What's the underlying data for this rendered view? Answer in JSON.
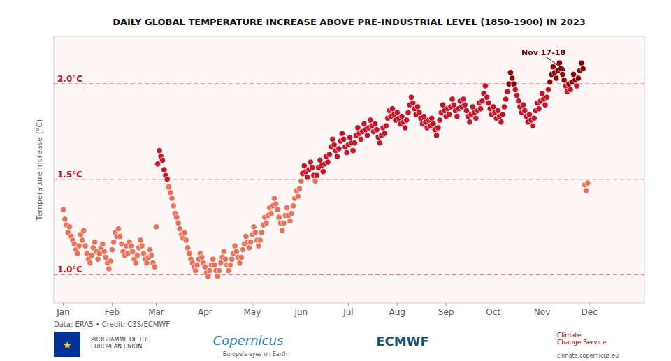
{
  "chart_data": {
    "type": "scatter",
    "title": "DAILY GLOBAL TEMPERATURE INCREASE ABOVE PRE-INDUSTRIAL LEVEL (1850-1900) IN 2023",
    "y_label": "Temperature increase (°C)",
    "source": "Data: ERA5 • Credit: C3S/ECMWF",
    "tick_labels": "x",
    "grid": false,
    "xlim": [
      -5,
      370
    ],
    "ylim": [
      0.85,
      2.25
    ],
    "xticks": [
      {
        "value": 1,
        "label": "Jan"
      },
      {
        "value": 32,
        "label": "Feb"
      },
      {
        "value": 60,
        "label": "Mar"
      },
      {
        "value": 91,
        "label": "Apr"
      },
      {
        "value": 121,
        "label": "May"
      },
      {
        "value": 152,
        "label": "Jun"
      },
      {
        "value": 182,
        "label": "Jul"
      },
      {
        "value": 213,
        "label": "Aug"
      },
      {
        "value": 244,
        "label": "Sep"
      },
      {
        "value": 274,
        "label": "Oct"
      },
      {
        "value": 305,
        "label": "Nov"
      },
      {
        "value": 335,
        "label": "Dec"
      }
    ],
    "hlines": [
      {
        "value": 1.0,
        "label": "1.0°C",
        "color": "#C0182A"
      },
      {
        "value": 1.5,
        "label": "1.5°C",
        "color": "#C0182A"
      },
      {
        "value": 2.0,
        "label": "2.0°C",
        "color": "#C0182A"
      }
    ],
    "annotation": {
      "text": "Nov 17-18",
      "x": 321,
      "y": 2.06,
      "color": "#5C0011"
    },
    "footer": [
      {
        "text": "★",
        "color": "gold"
      },
      {
        "text": "PROGRAMME OF THE\nEUROPEAN UNION",
        "color": "#333333"
      },
      {
        "text": "Copernicus",
        "color": "#2A7DB5"
      },
      {
        "text": "Europe's eyes on Earth",
        "color": "#555555"
      },
      {
        "text": "ECMWF",
        "color": "#1A5276"
      },
      {
        "text": "Climate\nChange Service",
        "color": "#8B0000"
      },
      {
        "text": "climate.copernicus.eu",
        "color": "#555555"
      }
    ],
    "x": [
      1,
      2,
      3,
      4,
      5,
      6,
      7,
      8,
      9,
      10,
      11,
      12,
      13,
      14,
      15,
      16,
      17,
      18,
      19,
      20,
      21,
      22,
      23,
      24,
      25,
      26,
      27,
      28,
      29,
      30,
      31,
      32,
      33,
      34,
      35,
      36,
      37,
      38,
      39,
      40,
      41,
      42,
      43,
      44,
      45,
      46,
      47,
      48,
      49,
      50,
      51,
      52,
      53,
      54,
      55,
      56,
      57,
      58,
      59,
      60,
      61,
      62,
      63,
      64,
      65,
      66,
      67,
      68,
      69,
      70,
      71,
      72,
      73,
      74,
      75,
      76,
      77,
      78,
      79,
      80,
      81,
      82,
      83,
      84,
      85,
      86,
      87,
      88,
      89,
      90,
      91,
      92,
      93,
      94,
      95,
      96,
      97,
      98,
      99,
      100,
      101,
      102,
      103,
      104,
      105,
      106,
      107,
      108,
      109,
      110,
      111,
      112,
      113,
      114,
      115,
      116,
      117,
      118,
      119,
      120,
      121,
      122,
      123,
      124,
      125,
      126,
      127,
      128,
      129,
      130,
      131,
      132,
      133,
      134,
      135,
      136,
      137,
      138,
      139,
      140,
      141,
      142,
      143,
      144,
      145,
      146,
      147,
      148,
      149,
      150,
      151,
      152,
      153,
      154,
      155,
      156,
      157,
      158,
      159,
      160,
      161,
      162,
      163,
      164,
      165,
      166,
      167,
      168,
      169,
      170,
      171,
      172,
      173,
      174,
      175,
      176,
      177,
      178,
      179,
      180,
      181,
      182,
      183,
      184,
      185,
      186,
      187,
      188,
      189,
      190,
      191,
      192,
      193,
      194,
      195,
      196,
      197,
      198,
      199,
      200,
      201,
      202,
      203,
      204,
      205,
      206,
      207,
      208,
      209,
      210,
      211,
      212,
      213,
      214,
      215,
      216,
      217,
      218,
      219,
      220,
      221,
      222,
      223,
      224,
      225,
      226,
      227,
      228,
      229,
      230,
      231,
      232,
      233,
      234,
      235,
      236,
      237,
      238,
      239,
      240,
      241,
      242,
      243,
      244,
      245,
      246,
      247,
      248,
      249,
      250,
      251,
      252,
      253,
      254,
      255,
      256,
      257,
      258,
      259,
      260,
      261,
      262,
      263,
      264,
      265,
      266,
      267,
      268,
      269,
      270,
      271,
      272,
      273,
      274,
      275,
      276,
      277,
      278,
      279,
      280,
      281,
      282,
      283,
      284,
      285,
      286,
      287,
      288,
      289,
      290,
      291,
      292,
      293,
      294,
      295,
      296,
      297,
      298,
      299,
      300,
      301,
      302,
      303,
      304,
      305,
      306,
      307,
      308,
      309,
      310,
      311,
      312,
      313,
      314,
      315,
      316,
      317,
      318,
      319,
      320,
      321,
      322,
      323,
      324,
      325,
      326,
      327,
      328,
      329,
      330,
      331,
      332,
      333,
      334
    ],
    "values": [
      1.34,
      1.29,
      1.26,
      1.22,
      1.25,
      1.2,
      1.18,
      1.16,
      1.13,
      1.11,
      1.15,
      1.21,
      1.18,
      1.23,
      1.15,
      1.11,
      1.08,
      1.06,
      1.1,
      1.14,
      1.17,
      1.12,
      1.08,
      1.11,
      1.14,
      1.16,
      1.12,
      1.09,
      1.06,
      1.03,
      1.07,
      1.13,
      1.17,
      1.22,
      1.2,
      1.24,
      1.2,
      1.16,
      1.12,
      1.1,
      1.15,
      1.11,
      1.17,
      1.15,
      1.12,
      1.08,
      1.06,
      1.1,
      1.14,
      1.18,
      1.15,
      1.11,
      1.08,
      1.06,
      1.09,
      1.13,
      1.1,
      1.06,
      1.04,
      1.25,
      1.58,
      1.65,
      1.62,
      1.6,
      1.55,
      1.52,
      1.5,
      1.46,
      1.43,
      1.4,
      1.36,
      1.32,
      1.3,
      1.27,
      1.24,
      1.21,
      1.19,
      1.22,
      1.18,
      1.14,
      1.11,
      1.08,
      1.06,
      1.04,
      1.02,
      1.05,
      1.08,
      1.11,
      1.09,
      1.06,
      1.04,
      1.01,
      0.99,
      1.02,
      1.05,
      1.08,
      1.05,
      1.02,
      0.99,
      1.02,
      1.06,
      1.09,
      1.12,
      1.08,
      1.05,
      1.02,
      1.05,
      1.08,
      1.11,
      1.15,
      1.12,
      1.09,
      1.06,
      1.09,
      1.13,
      1.16,
      1.2,
      1.17,
      1.14,
      1.17,
      1.21,
      1.25,
      1.22,
      1.18,
      1.15,
      1.18,
      1.22,
      1.26,
      1.3,
      1.27,
      1.31,
      1.35,
      1.32,
      1.36,
      1.4,
      1.37,
      1.34,
      1.3,
      1.27,
      1.23,
      1.27,
      1.31,
      1.35,
      1.31,
      1.28,
      1.32,
      1.36,
      1.4,
      1.44,
      1.41,
      1.45,
      1.49,
      1.53,
      1.57,
      1.54,
      1.51,
      1.55,
      1.59,
      1.56,
      1.52,
      1.49,
      1.52,
      1.56,
      1.6,
      1.57,
      1.54,
      1.58,
      1.62,
      1.59,
      1.63,
      1.67,
      1.71,
      1.68,
      1.65,
      1.62,
      1.66,
      1.7,
      1.74,
      1.71,
      1.67,
      1.64,
      1.68,
      1.72,
      1.69,
      1.65,
      1.69,
      1.73,
      1.77,
      1.74,
      1.71,
      1.75,
      1.79,
      1.76,
      1.73,
      1.77,
      1.81,
      1.78,
      1.75,
      1.79,
      1.76,
      1.72,
      1.69,
      1.73,
      1.77,
      1.74,
      1.78,
      1.82,
      1.86,
      1.83,
      1.87,
      1.84,
      1.81,
      1.85,
      1.82,
      1.79,
      1.83,
      1.8,
      1.77,
      1.81,
      1.85,
      1.89,
      1.93,
      1.9,
      1.87,
      1.84,
      1.88,
      1.85,
      1.82,
      1.79,
      1.83,
      1.8,
      1.77,
      1.81,
      1.78,
      1.82,
      1.79,
      1.76,
      1.73,
      1.77,
      1.81,
      1.85,
      1.89,
      1.86,
      1.83,
      1.87,
      1.84,
      1.88,
      1.92,
      1.89,
      1.86,
      1.83,
      1.87,
      1.91,
      1.88,
      1.92,
      1.89,
      1.86,
      1.83,
      1.8,
      1.84,
      1.88,
      1.85,
      1.82,
      1.86,
      1.9,
      1.87,
      1.91,
      1.95,
      1.99,
      1.93,
      1.9,
      1.87,
      1.84,
      1.88,
      1.85,
      1.82,
      1.86,
      1.83,
      1.8,
      1.84,
      1.88,
      1.92,
      1.96,
      2.0,
      2.06,
      2.03,
      2.0,
      1.97,
      1.94,
      1.91,
      1.88,
      1.85,
      1.89,
      1.86,
      1.83,
      1.8,
      1.84,
      1.81,
      1.78,
      1.82,
      1.86,
      1.9,
      1.87,
      1.91,
      1.95,
      1.92,
      1.89,
      1.93,
      1.97,
      2.01,
      2.05,
      2.09,
      2.06,
      2.03,
      2.07,
      2.11,
      2.08,
      2.05,
      2.02,
      1.99,
      1.96,
      2.0,
      1.97,
      2.01,
      2.05,
      2.02,
      1.99,
      2.03,
      2.07,
      2.11,
      2.08,
      1.47,
      1.44,
      1.48
    ],
    "colors": [
      "#E8735A",
      "#E8735A",
      "#E8735A",
      "#E8735A",
      "#E8735A",
      "#E8735A",
      "#E8735A",
      "#E8735A",
      "#E8735A",
      "#E8735A",
      "#E8735A",
      "#E8735A",
      "#E8735A",
      "#E8735A",
      "#E8735A",
      "#E8735A",
      "#E8735A",
      "#E8735A",
      "#E8735A",
      "#E8735A",
      "#E8735A",
      "#E8735A",
      "#E8735A",
      "#E8735A",
      "#E8735A",
      "#E8735A",
      "#E8735A",
      "#E8735A",
      "#E8735A",
      "#E8735A",
      "#E8735A",
      "#E8735A",
      "#E8735A",
      "#E8735A",
      "#E8735A",
      "#E8735A",
      "#E8735A",
      "#E8735A",
      "#E8735A",
      "#E8735A",
      "#E8735A",
      "#E8735A",
      "#E8735A",
      "#E8735A",
      "#E8735A",
      "#E8735A",
      "#E8735A",
      "#E8735A",
      "#E8735A",
      "#E8735A",
      "#E8735A",
      "#E8735A",
      "#E8735A",
      "#E8735A",
      "#E8735A",
      "#E8735A",
      "#E8735A",
      "#E8735A",
      "#E8735A",
      "#E8735A",
      "#C0182A",
      "#C0182A",
      "#C0182A",
      "#C0182A",
      "#C0182A",
      "#C0182A",
      "#C0182A",
      "#E8735A",
      "#E8735A",
      "#E8735A",
      "#E8735A",
      "#E8735A",
      "#E8735A",
      "#E8735A",
      "#E8735A",
      "#E8735A",
      "#E8735A",
      "#E8735A",
      "#E8735A",
      "#E8735A",
      "#E8735A",
      "#E8735A",
      "#E8735A",
      "#E8735A",
      "#E8735A",
      "#E8735A",
      "#E8735A",
      "#E8735A",
      "#E8735A",
      "#E8735A",
      "#E8735A",
      "#E8735A",
      "#E8735A",
      "#E8735A",
      "#E8735A",
      "#E8735A",
      "#E8735A",
      "#E8735A",
      "#E8735A",
      "#E8735A",
      "#E8735A",
      "#E8735A",
      "#E8735A",
      "#E8735A",
      "#E8735A",
      "#E8735A",
      "#E8735A",
      "#E8735A",
      "#E8735A",
      "#E8735A",
      "#E8735A",
      "#E8735A",
      "#E8735A",
      "#E8735A",
      "#E8735A",
      "#E8735A",
      "#E8735A",
      "#E8735A",
      "#E8735A",
      "#E8735A",
      "#E8735A",
      "#E8735A",
      "#E8735A",
      "#E8735A",
      "#E8735A",
      "#E8735A",
      "#E8735A",
      "#E8735A",
      "#E8735A",
      "#E8735A",
      "#E8735A",
      "#E8735A",
      "#E8735A",
      "#E8735A",
      "#E8735A",
      "#E8735A",
      "#E8735A",
      "#E8735A",
      "#E8735A",
      "#E8735A",
      "#E8735A",
      "#E8735A",
      "#E8735A",
      "#E8735A",
      "#E8735A",
      "#E8735A",
      "#E8735A",
      "#E8735A",
      "#E8735A",
      "#E8735A",
      "#E8735A",
      "#E8735A",
      "#C0182A",
      "#C0182A",
      "#C0182A",
      "#C0182A",
      "#C0182A",
      "#C0182A",
      "#C0182A",
      "#C0182A",
      "#E8735A",
      "#C0182A",
      "#C0182A",
      "#C0182A",
      "#C0182A",
      "#C0182A",
      "#C0182A",
      "#C0182A",
      "#C0182A",
      "#C0182A",
      "#C0182A",
      "#C0182A",
      "#C0182A",
      "#C0182A",
      "#C0182A",
      "#C0182A",
      "#C0182A",
      "#C0182A",
      "#C0182A",
      "#C0182A",
      "#C0182A",
      "#C0182A",
      "#C0182A",
      "#C0182A",
      "#C0182A",
      "#C0182A",
      "#C0182A",
      "#C0182A",
      "#C0182A",
      "#C0182A",
      "#C0182A",
      "#C0182A",
      "#C0182A",
      "#C0182A",
      "#C0182A",
      "#C0182A",
      "#C0182A",
      "#C0182A",
      "#C0182A",
      "#C0182A",
      "#C0182A",
      "#C0182A",
      "#C0182A",
      "#C0182A",
      "#C0182A",
      "#C0182A",
      "#C0182A",
      "#C0182A",
      "#C0182A",
      "#C0182A",
      "#C0182A",
      "#C0182A",
      "#C0182A",
      "#C0182A",
      "#C0182A",
      "#C0182A",
      "#C0182A",
      "#C0182A",
      "#C0182A",
      "#C0182A",
      "#C0182A",
      "#C0182A",
      "#C0182A",
      "#C0182A",
      "#C0182A",
      "#C0182A",
      "#C0182A",
      "#C0182A",
      "#C0182A",
      "#C0182A",
      "#C0182A",
      "#C0182A",
      "#C0182A",
      "#C0182A",
      "#C0182A",
      "#C0182A",
      "#C0182A",
      "#C0182A",
      "#C0182A",
      "#C0182A",
      "#C0182A",
      "#C0182A",
      "#C0182A",
      "#C0182A",
      "#C0182A",
      "#C0182A",
      "#C0182A",
      "#C0182A",
      "#C0182A",
      "#C0182A",
      "#C0182A",
      "#C0182A",
      "#C0182A",
      "#C0182A",
      "#C0182A",
      "#C0182A",
      "#C0182A",
      "#C0182A",
      "#C0182A",
      "#C0182A",
      "#C0182A",
      "#C0182A",
      "#C0182A",
      "#C0182A",
      "#C0182A",
      "#C0182A",
      "#C0182A",
      "#C0182A",
      "#C0182A",
      "#C0182A",
      "#C0182A",
      "#C0182A",
      "#C0182A",
      "#C0182A",
      "#C0182A",
      "#C0182A",
      "#C0182A",
      "#C0182A",
      "#C0182A",
      "#C0182A",
      "#C0182A",
      "#C0182A",
      "#C0182A",
      "#8B0000",
      "#8B0000",
      "#8B0000",
      "#8B0000",
      "#C0182A",
      "#C0182A",
      "#C0182A",
      "#C0182A",
      "#C0182A",
      "#C0182A",
      "#C0182A",
      "#C0182A",
      "#C0182A",
      "#C0182A",
      "#C0182A",
      "#C0182A",
      "#C0182A",
      "#C0182A",
      "#C0182A",
      "#C0182A",
      "#C0182A",
      "#C0182A",
      "#C0182A",
      "#C0182A",
      "#C0182A",
      "#C0182A",
      "#8B0000",
      "#8B0000",
      "#8B0000",
      "#8B0000",
      "#8B0000",
      "#8B0000",
      "#8B0000",
      "#8B0000",
      "#8B0000",
      "#8B0000",
      "#C0182A",
      "#C0182A",
      "#8B0000",
      "#C0182A",
      "#8B0000",
      "#8B0000",
      "#8B0000",
      "#C0182A",
      "#8B0000",
      "#8B0000",
      "#8B0000",
      "#8B0000",
      "#E8735A",
      "#E8735A",
      "#E8735A"
    ]
  }
}
